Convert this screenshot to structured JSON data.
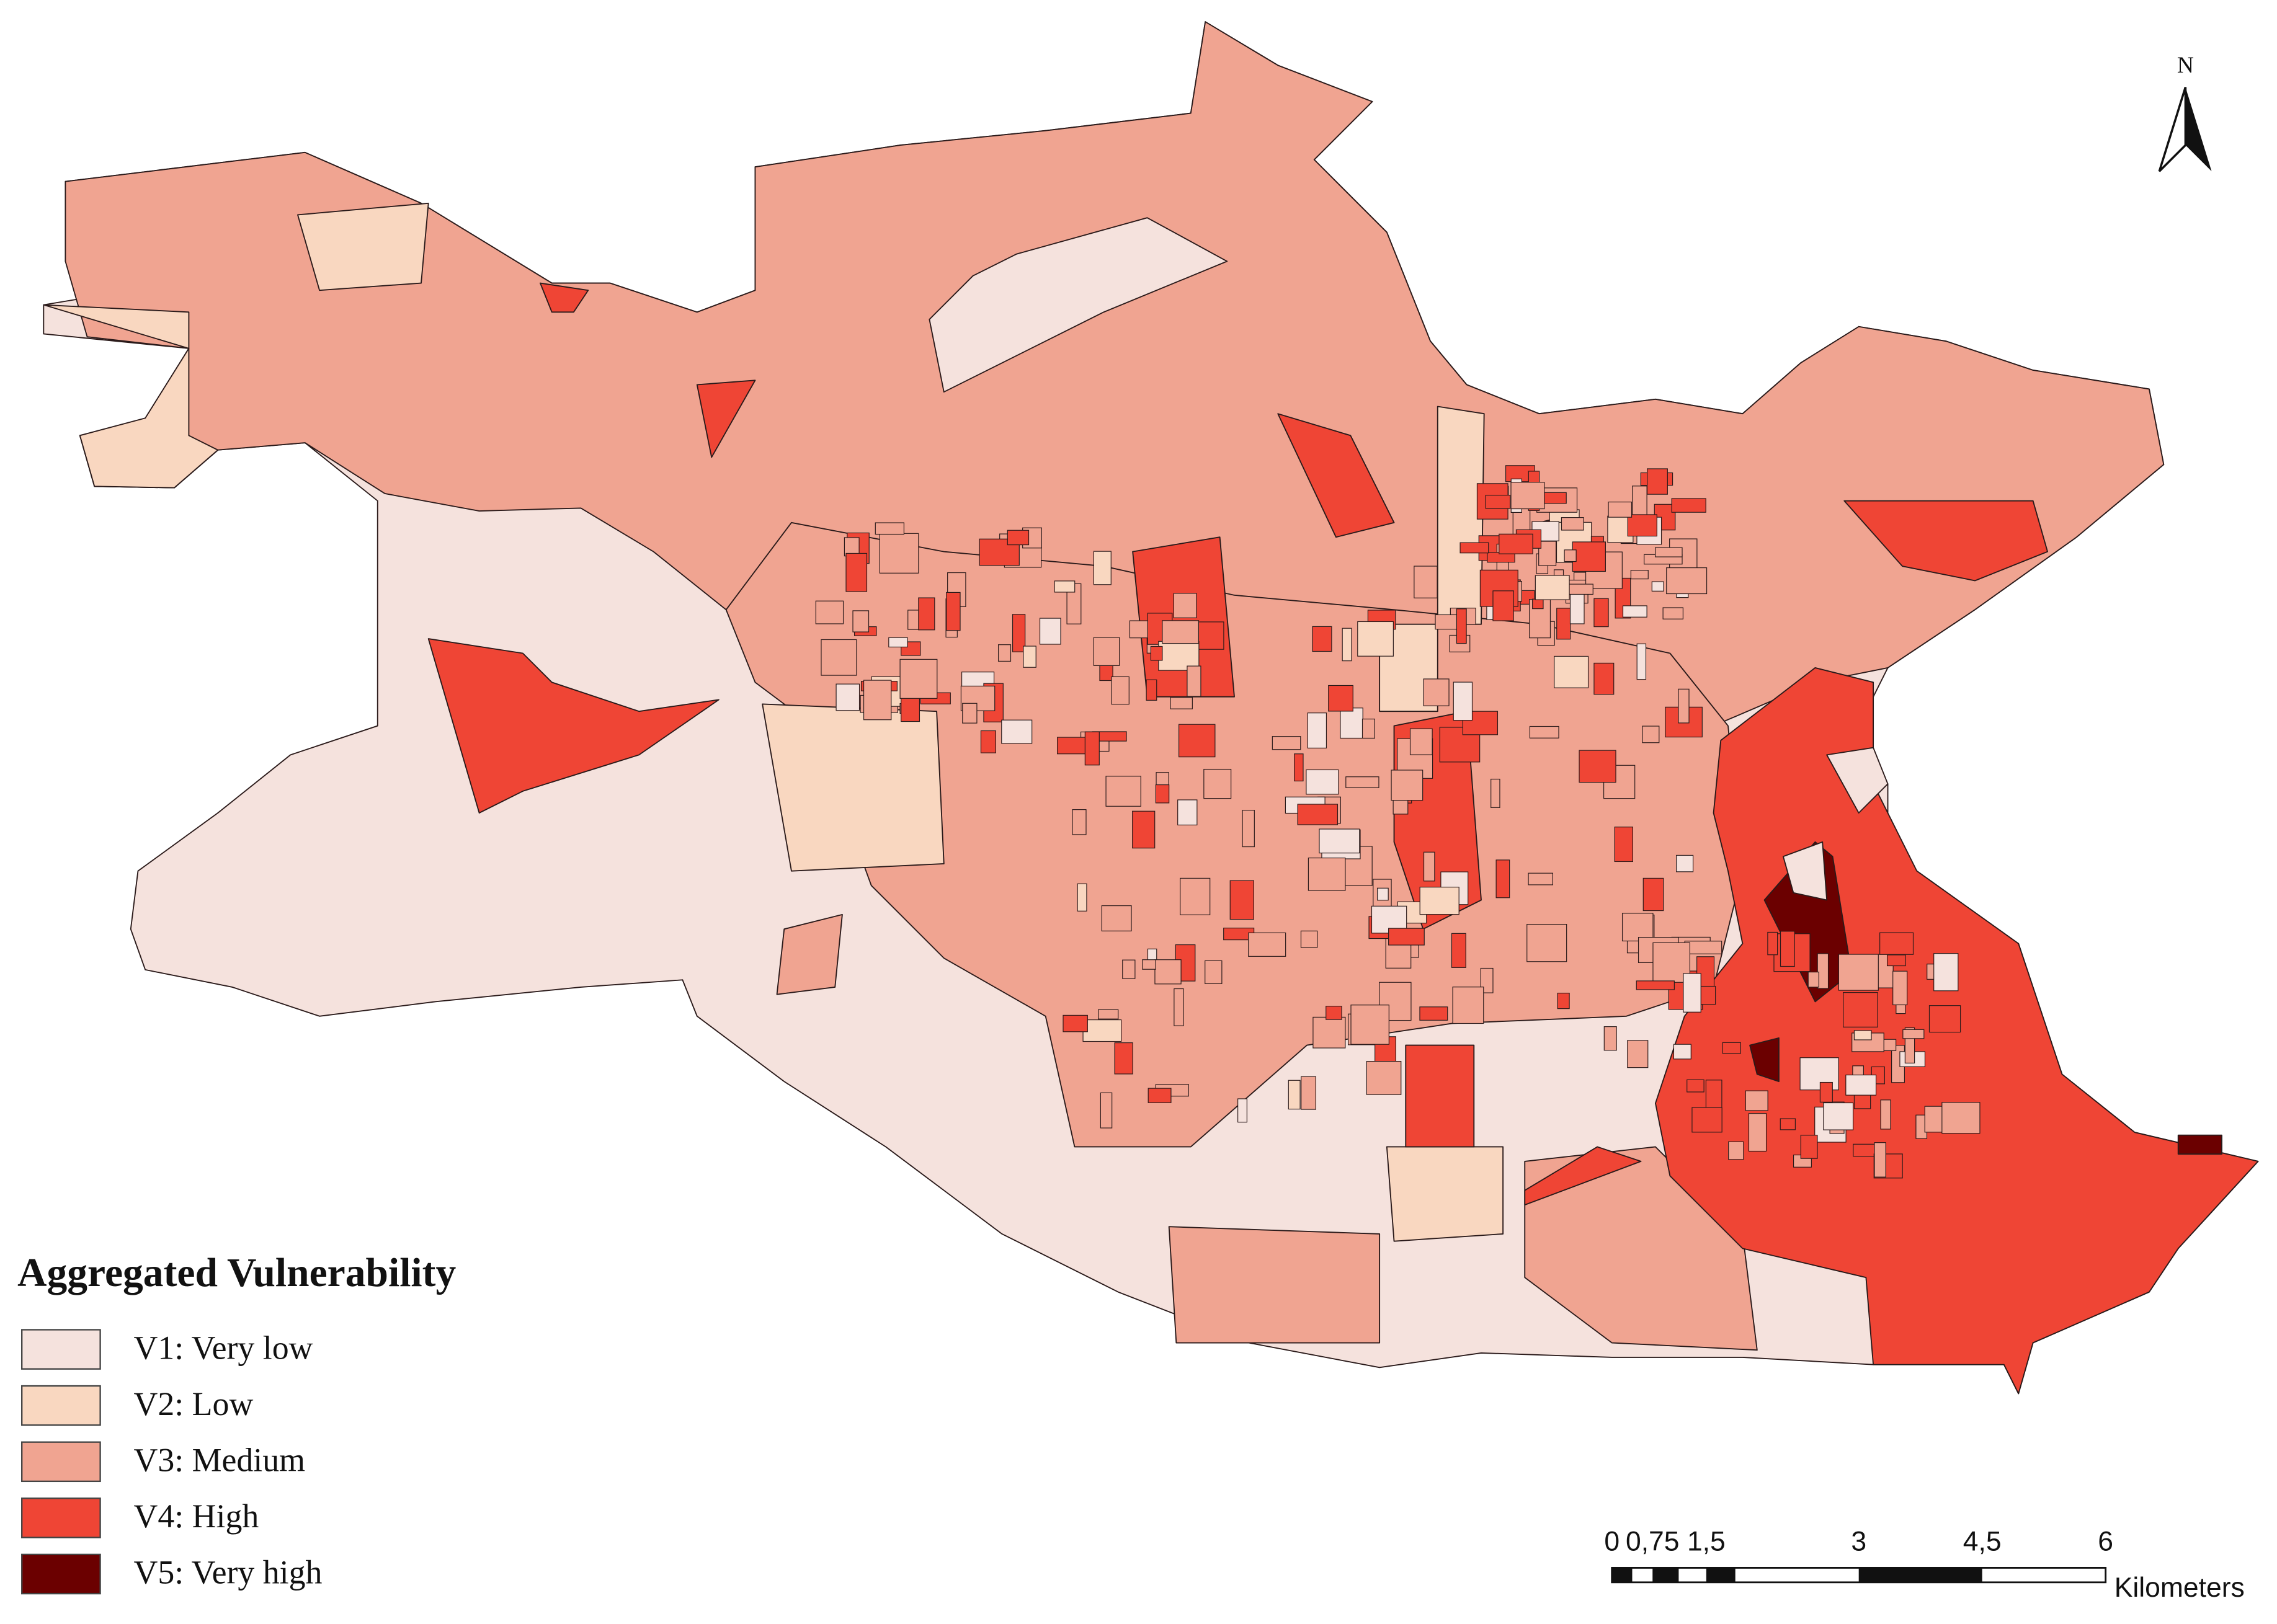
{
  "legend": {
    "title": "Aggregated Vulnerability",
    "items": [
      {
        "label": "V1: Very low",
        "color": "#f5e2dd"
      },
      {
        "label": "V2: Low",
        "color": "#f9d7c0"
      },
      {
        "label": "V3: Medium",
        "color": "#f0a491"
      },
      {
        "label": "V4: High",
        "color": "#ef4535"
      },
      {
        "label": "V5: Very high",
        "color": "#6b0000"
      }
    ]
  },
  "scale_bar": {
    "labels": [
      "0",
      "0,75",
      "1,5",
      "3",
      "4,5",
      "6"
    ],
    "unit": "Kilometers"
  },
  "north_arrow": {
    "label": "N"
  }
}
